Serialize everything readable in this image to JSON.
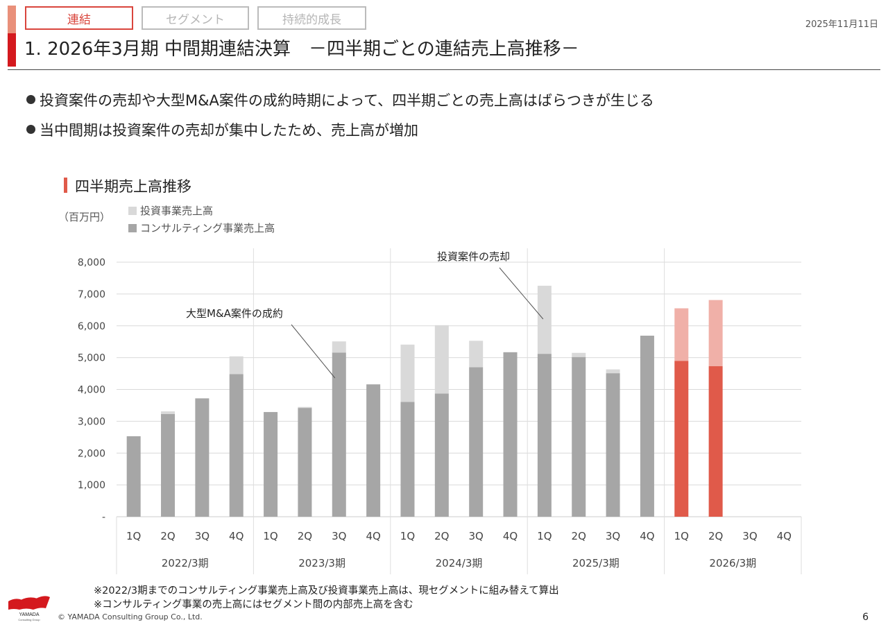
{
  "header": {
    "tabs": [
      {
        "label": "連結",
        "active": true
      },
      {
        "label": "セグメント",
        "active": false
      },
      {
        "label": "持続的成長",
        "active": false
      }
    ],
    "date": "2025年11月11日",
    "title": "1. 2026年3月期 中間期連結決算　－四半期ごとの連結売上高推移－"
  },
  "bullets": [
    "投資案件の売却や大型M&A案件の成約時期によって、四半期ごとの売上高はばらつきが生じる",
    "当中間期は投資案件の売却が集中したため、売上高が増加"
  ],
  "chart_section": {
    "heading": "四半期売上高推移",
    "unit": "（百万円）",
    "legend": {
      "investment": "投資事業売上高",
      "consulting": "コンサルティング事業売上高"
    }
  },
  "chart_data": {
    "type": "bar",
    "stacked": true,
    "title": "四半期売上高推移",
    "ylabel": "（百万円）",
    "ylim": [
      0,
      8000
    ],
    "yticks": [
      0,
      1000,
      2000,
      3000,
      4000,
      5000,
      6000,
      7000,
      8000
    ],
    "ytick_labels": [
      "-",
      "1,000",
      "2,000",
      "3,000",
      "4,000",
      "5,000",
      "6,000",
      "7,000",
      "8,000"
    ],
    "categories": [
      "1Q",
      "2Q",
      "3Q",
      "4Q",
      "1Q",
      "2Q",
      "3Q",
      "4Q",
      "1Q",
      "2Q",
      "3Q",
      "4Q",
      "1Q",
      "2Q",
      "3Q",
      "4Q",
      "1Q",
      "2Q",
      "3Q",
      "4Q"
    ],
    "groups": [
      "2022/3期",
      "2023/3期",
      "2024/3期",
      "2025/3期",
      "2026/3期"
    ],
    "series": [
      {
        "name": "コンサルティング事業売上高",
        "values": [
          2530,
          3230,
          3720,
          4480,
          3290,
          3420,
          5160,
          4160,
          3610,
          3870,
          4700,
          5170,
          5120,
          5020,
          4510,
          5690,
          4900,
          4730,
          null,
          null
        ]
      },
      {
        "name": "投資事業売上高",
        "values": [
          0,
          80,
          0,
          560,
          0,
          30,
          350,
          0,
          1800,
          2150,
          830,
          0,
          2140,
          130,
          120,
          0,
          1650,
          2080,
          null,
          null
        ]
      }
    ],
    "colors": {
      "consulting": "#a6a6a6",
      "investment": "#d9d9d9",
      "current_consulting": "#e05a4a",
      "current_investment": "#f0b0a8",
      "grid": "#d9d9d9",
      "axis": "#cccccc"
    },
    "annotations": [
      {
        "text": "大型M&A案件の成約",
        "target_index": 6
      },
      {
        "text": "投資案件の売却",
        "target_index": 12
      }
    ],
    "legend_position": "top-left"
  },
  "notes": [
    "※2022/3期までのコンサルティング事業売上高及び投資事業売上高は、現セグメントに組み替えて算出",
    "※コンサルティング事業の売上高にはセグメント間の内部売上高を含む"
  ],
  "footer": {
    "logo_text": "YAMADA",
    "logo_subtext": "Consulting Group",
    "copyright": "© YAMADA Consulting Group Co., Ltd.",
    "page_number": "6"
  }
}
